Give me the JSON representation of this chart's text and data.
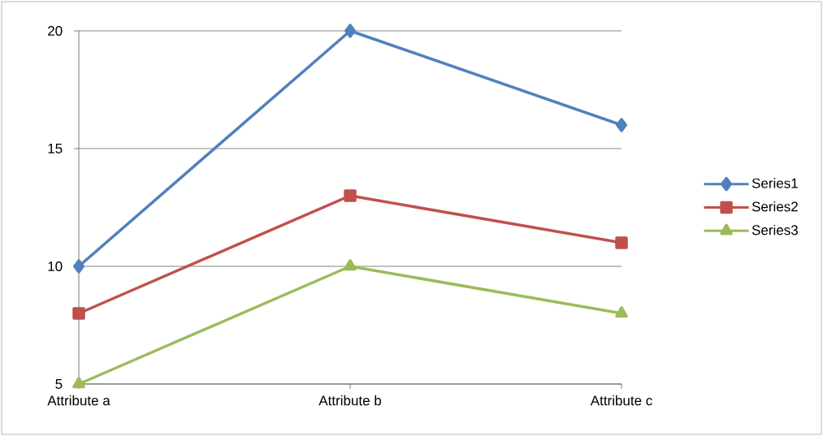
{
  "chart_data": {
    "type": "line",
    "categories": [
      "Attribute a",
      "Attribute b",
      "Attribute c"
    ],
    "series": [
      {
        "name": "Series1",
        "color": "#4f81bd",
        "marker": "diamond",
        "values": [
          10,
          20,
          16
        ]
      },
      {
        "name": "Series2",
        "color": "#c0504d",
        "marker": "square",
        "values": [
          8,
          13,
          11
        ]
      },
      {
        "name": "Series3",
        "color": "#9bbb59",
        "marker": "triangle",
        "values": [
          5,
          10,
          8
        ]
      }
    ],
    "ylim": [
      5,
      20
    ],
    "yticks": [
      5,
      10,
      15,
      20
    ],
    "grid": "y",
    "legend": "right",
    "line_style": "solid"
  }
}
